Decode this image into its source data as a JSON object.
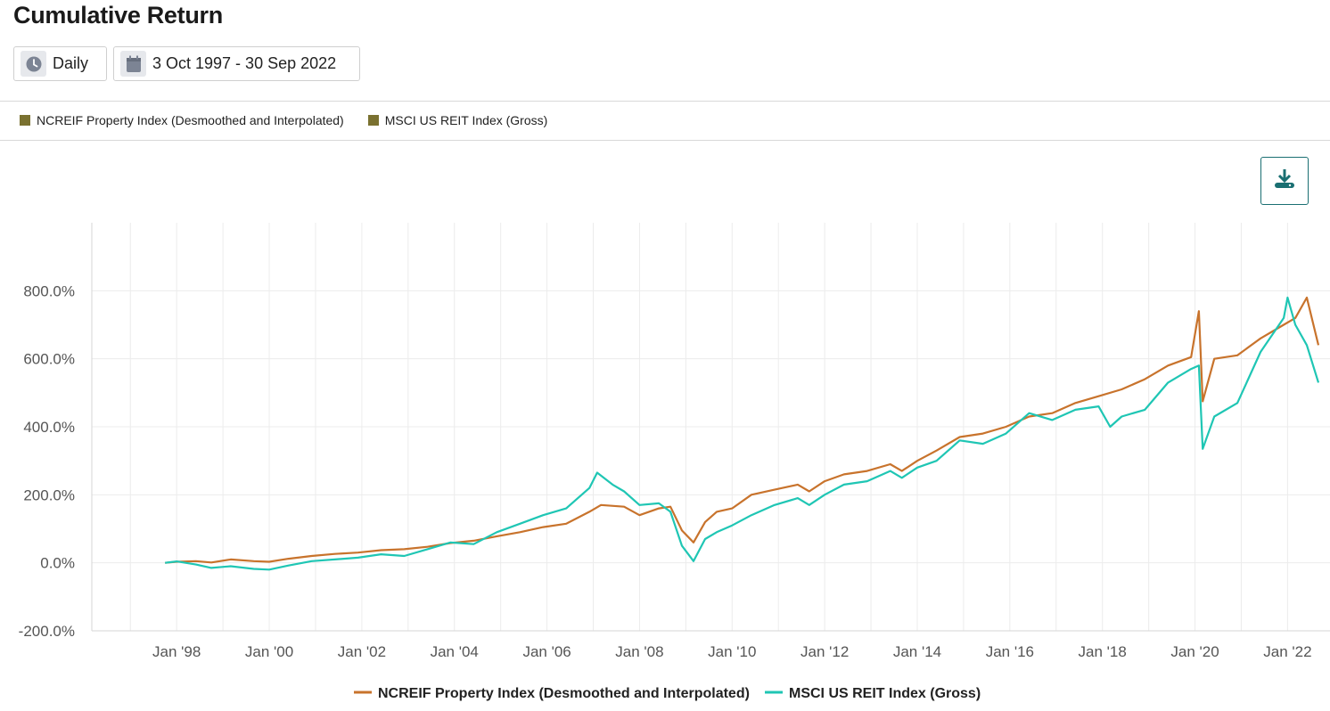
{
  "page": {
    "title": "Cumulative Return",
    "frequency_label": "Daily",
    "date_range_label": "3 Oct 1997 - 30 Sep 2022",
    "icons": {
      "frequency": "clock-icon",
      "date_range": "calendar-icon",
      "download": "download-icon"
    }
  },
  "legend": [
    {
      "label": "NCREIF Property Index (Desmoothed and Interpolated)",
      "color": "#7a7130"
    },
    {
      "label": "MSCI US REIT Index (Gross)",
      "color": "#7a7130"
    }
  ],
  "chart_data": {
    "type": "line",
    "title": "",
    "xlabel": "",
    "ylabel": "",
    "x_ticks": [
      "Jan '98",
      "Jan '00",
      "Jan '02",
      "Jan '04",
      "Jan '06",
      "Jan '08",
      "Jan '10",
      "Jan '12",
      "Jan '14",
      "Jan '16",
      "Jan '18",
      "Jan '20",
      "Jan '22"
    ],
    "y_ticks": [
      "-200.0%",
      "0.0%",
      "200.0%",
      "400.0%",
      "600.0%",
      "800.0%"
    ],
    "xlim": [
      "1996-03-01",
      "2022-12-31"
    ],
    "ylim": [
      -200,
      1000
    ],
    "grid": true,
    "legend_position": "bottom",
    "series": [
      {
        "name": "NCREIF Property Index (Desmoothed and Interpolated)",
        "color": "#c8732c",
        "points": [
          [
            "1997-10",
            0
          ],
          [
            "1998-01",
            3
          ],
          [
            "1998-06",
            5
          ],
          [
            "1998-10",
            1
          ],
          [
            "1999-03",
            10
          ],
          [
            "1999-09",
            5
          ],
          [
            "2000-01",
            3
          ],
          [
            "2000-06",
            12
          ],
          [
            "2000-12",
            20
          ],
          [
            "2001-06",
            26
          ],
          [
            "2001-12",
            30
          ],
          [
            "2002-06",
            37
          ],
          [
            "2002-12",
            40
          ],
          [
            "2003-06",
            47
          ],
          [
            "2003-12",
            58
          ],
          [
            "2004-06",
            65
          ],
          [
            "2004-12",
            78
          ],
          [
            "2005-06",
            90
          ],
          [
            "2005-12",
            105
          ],
          [
            "2006-06",
            115
          ],
          [
            "2006-12",
            150
          ],
          [
            "2007-03",
            170
          ],
          [
            "2007-09",
            165
          ],
          [
            "2008-01",
            140
          ],
          [
            "2008-06",
            160
          ],
          [
            "2008-09",
            165
          ],
          [
            "2008-12",
            95
          ],
          [
            "2009-03",
            60
          ],
          [
            "2009-06",
            120
          ],
          [
            "2009-09",
            150
          ],
          [
            "2010-01",
            160
          ],
          [
            "2010-06",
            200
          ],
          [
            "2010-12",
            215
          ],
          [
            "2011-06",
            230
          ],
          [
            "2011-09",
            210
          ],
          [
            "2012-01",
            240
          ],
          [
            "2012-06",
            260
          ],
          [
            "2012-12",
            270
          ],
          [
            "2013-06",
            290
          ],
          [
            "2013-09",
            270
          ],
          [
            "2014-01",
            300
          ],
          [
            "2014-06",
            330
          ],
          [
            "2014-12",
            370
          ],
          [
            "2015-06",
            380
          ],
          [
            "2015-12",
            400
          ],
          [
            "2016-06",
            430
          ],
          [
            "2016-12",
            440
          ],
          [
            "2017-06",
            470
          ],
          [
            "2017-12",
            490
          ],
          [
            "2018-06",
            510
          ],
          [
            "2018-12",
            540
          ],
          [
            "2019-06",
            580
          ],
          [
            "2019-12",
            605
          ],
          [
            "2020-02",
            740
          ],
          [
            "2020-03",
            475
          ],
          [
            "2020-06",
            600
          ],
          [
            "2020-12",
            610
          ],
          [
            "2021-06",
            660
          ],
          [
            "2021-12",
            700
          ],
          [
            "2022-03",
            720
          ],
          [
            "2022-06",
            780
          ],
          [
            "2022-09",
            640
          ]
        ]
      },
      {
        "name": "MSCI US REIT Index (Gross)",
        "color": "#1fc6b4",
        "points": [
          [
            "1997-10",
            0
          ],
          [
            "1998-01",
            4
          ],
          [
            "1998-06",
            -5
          ],
          [
            "1998-10",
            -15
          ],
          [
            "1999-03",
            -10
          ],
          [
            "1999-09",
            -18
          ],
          [
            "2000-01",
            -20
          ],
          [
            "2000-06",
            -8
          ],
          [
            "2000-12",
            5
          ],
          [
            "2001-06",
            10
          ],
          [
            "2001-12",
            15
          ],
          [
            "2002-06",
            25
          ],
          [
            "2002-12",
            20
          ],
          [
            "2003-06",
            40
          ],
          [
            "2003-12",
            60
          ],
          [
            "2004-06",
            55
          ],
          [
            "2004-12",
            90
          ],
          [
            "2005-06",
            115
          ],
          [
            "2005-12",
            140
          ],
          [
            "2006-06",
            160
          ],
          [
            "2006-12",
            220
          ],
          [
            "2007-02",
            265
          ],
          [
            "2007-06",
            230
          ],
          [
            "2007-09",
            210
          ],
          [
            "2008-01",
            170
          ],
          [
            "2008-06",
            175
          ],
          [
            "2008-09",
            150
          ],
          [
            "2008-12",
            50
          ],
          [
            "2009-03",
            5
          ],
          [
            "2009-06",
            70
          ],
          [
            "2009-09",
            90
          ],
          [
            "2010-01",
            110
          ],
          [
            "2010-06",
            140
          ],
          [
            "2010-12",
            170
          ],
          [
            "2011-06",
            190
          ],
          [
            "2011-09",
            170
          ],
          [
            "2012-01",
            200
          ],
          [
            "2012-06",
            230
          ],
          [
            "2012-12",
            240
          ],
          [
            "2013-06",
            270
          ],
          [
            "2013-09",
            250
          ],
          [
            "2014-01",
            280
          ],
          [
            "2014-06",
            300
          ],
          [
            "2014-12",
            360
          ],
          [
            "2015-06",
            350
          ],
          [
            "2015-12",
            380
          ],
          [
            "2016-06",
            440
          ],
          [
            "2016-12",
            420
          ],
          [
            "2017-06",
            450
          ],
          [
            "2017-12",
            460
          ],
          [
            "2018-03",
            400
          ],
          [
            "2018-06",
            430
          ],
          [
            "2018-12",
            450
          ],
          [
            "2019-06",
            530
          ],
          [
            "2019-12",
            570
          ],
          [
            "2020-02",
            580
          ],
          [
            "2020-03",
            335
          ],
          [
            "2020-06",
            430
          ],
          [
            "2020-12",
            470
          ],
          [
            "2021-06",
            620
          ],
          [
            "2021-12",
            720
          ],
          [
            "2022-01",
            780
          ],
          [
            "2022-03",
            700
          ],
          [
            "2022-06",
            640
          ],
          [
            "2022-09",
            530
          ]
        ]
      }
    ]
  }
}
